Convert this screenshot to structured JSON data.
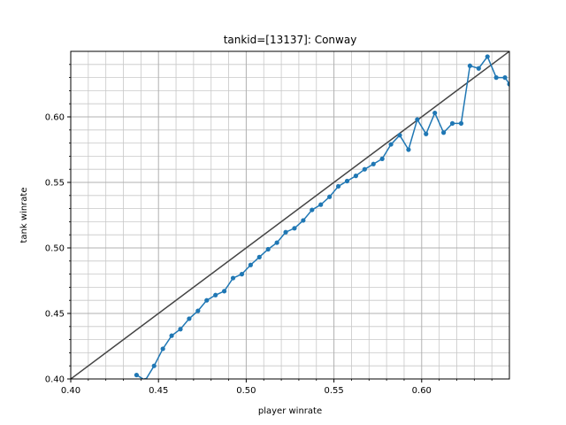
{
  "chart_data": {
    "type": "line",
    "title": "tankid=[13137]: Conway",
    "xlabel": "player winrate",
    "ylabel": "tank winrate",
    "xlim": [
      0.4,
      0.65
    ],
    "ylim": [
      0.4,
      0.65
    ],
    "x_ticks": [
      "0.40",
      "0.45",
      "0.50",
      "0.55",
      "0.60"
    ],
    "y_ticks": [
      "0.40",
      "0.45",
      "0.50",
      "0.55",
      "0.60"
    ],
    "grid": true,
    "minor_grid": true,
    "reference_line": {
      "type": "diagonal",
      "x": [
        0.4,
        0.65
      ],
      "y": [
        0.4,
        0.65
      ],
      "color": "#444444"
    },
    "series": [
      {
        "color": "#1f77b4",
        "marker": "circle",
        "x": [
          0.4375,
          0.4425,
          0.4475,
          0.4525,
          0.4575,
          0.4625,
          0.4675,
          0.4725,
          0.4775,
          0.4825,
          0.4875,
          0.4925,
          0.4975,
          0.5025,
          0.5075,
          0.5125,
          0.5175,
          0.5225,
          0.5275,
          0.5325,
          0.5375,
          0.5425,
          0.5475,
          0.5525,
          0.5575,
          0.5625,
          0.5675,
          0.5725,
          0.5775,
          0.5825,
          0.5875,
          0.5925,
          0.5975,
          0.6025,
          0.6075,
          0.6125,
          0.6175,
          0.6225,
          0.6275,
          0.6325,
          0.6375,
          0.6425,
          0.6475,
          0.65
        ],
        "y": [
          0.403,
          0.399,
          0.41,
          0.423,
          0.433,
          0.438,
          0.446,
          0.452,
          0.46,
          0.464,
          0.467,
          0.477,
          0.48,
          0.487,
          0.493,
          0.499,
          0.504,
          0.512,
          0.515,
          0.521,
          0.529,
          0.533,
          0.539,
          0.547,
          0.551,
          0.555,
          0.56,
          0.564,
          0.568,
          0.579,
          0.586,
          0.575,
          0.598,
          0.587,
          0.603,
          0.588,
          0.595,
          0.595,
          0.639,
          0.637,
          0.646,
          0.63,
          0.63,
          0.625
        ]
      }
    ]
  }
}
